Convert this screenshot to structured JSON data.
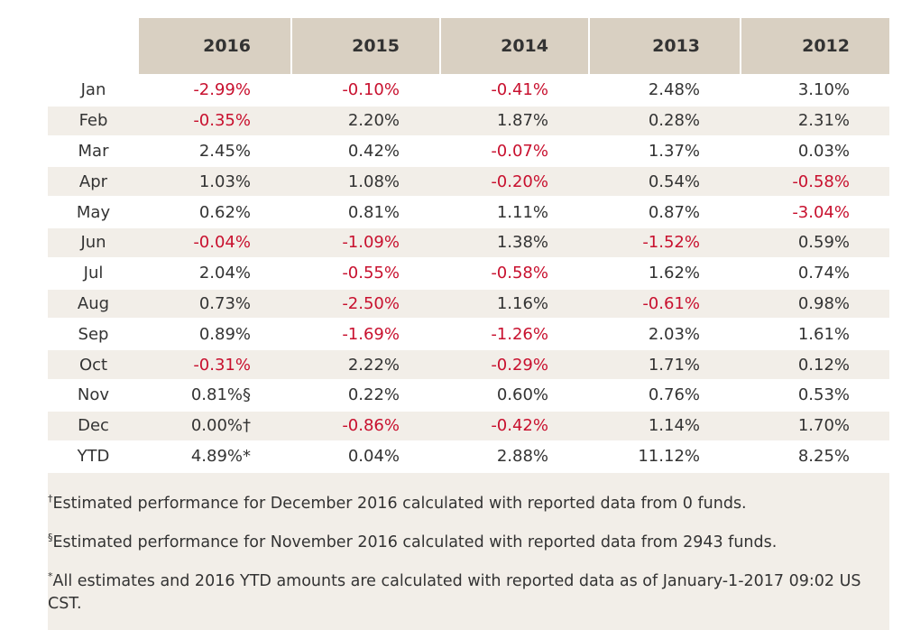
{
  "table": {
    "headers": [
      "2016",
      "2015",
      "2014",
      "2013",
      "2012"
    ],
    "rows": [
      {
        "month": "Jan",
        "values": [
          "-2.99%",
          "-0.10%",
          "-0.41%",
          "2.48%",
          "3.10%"
        ]
      },
      {
        "month": "Feb",
        "values": [
          "-0.35%",
          "2.20%",
          "1.87%",
          "0.28%",
          "2.31%"
        ]
      },
      {
        "month": "Mar",
        "values": [
          "2.45%",
          "0.42%",
          "-0.07%",
          "1.37%",
          "0.03%"
        ]
      },
      {
        "month": "Apr",
        "values": [
          "1.03%",
          "1.08%",
          "-0.20%",
          "0.54%",
          "-0.58%"
        ]
      },
      {
        "month": "May",
        "values": [
          "0.62%",
          "0.81%",
          "1.11%",
          "0.87%",
          "-3.04%"
        ]
      },
      {
        "month": "Jun",
        "values": [
          "-0.04%",
          "-1.09%",
          "1.38%",
          "-1.52%",
          "0.59%"
        ]
      },
      {
        "month": "Jul",
        "values": [
          "2.04%",
          "-0.55%",
          "-0.58%",
          "1.62%",
          "0.74%"
        ]
      },
      {
        "month": "Aug",
        "values": [
          "0.73%",
          "-2.50%",
          "1.16%",
          "-0.61%",
          "0.98%"
        ]
      },
      {
        "month": "Sep",
        "values": [
          "0.89%",
          "-1.69%",
          "-1.26%",
          "2.03%",
          "1.61%"
        ]
      },
      {
        "month": "Oct",
        "values": [
          "-0.31%",
          "2.22%",
          "-0.29%",
          "1.71%",
          "0.12%"
        ]
      },
      {
        "month": "Nov",
        "values": [
          "0.81%§",
          "0.22%",
          "0.60%",
          "0.76%",
          "0.53%"
        ]
      },
      {
        "month": "Dec",
        "values": [
          "0.00%†",
          "-0.86%",
          "-0.42%",
          "1.14%",
          "1.70%"
        ]
      },
      {
        "month": "YTD",
        "values": [
          "4.89%*",
          "0.04%",
          "2.88%",
          "11.12%",
          "8.25%"
        ]
      }
    ]
  },
  "notes": [
    {
      "mark": "†",
      "text": "Estimated performance for December 2016 calculated with reported data from 0 funds."
    },
    {
      "mark": "§",
      "text": "Estimated performance for November 2016 calculated with reported data from 2943 funds."
    },
    {
      "mark": "*",
      "text": "All estimates and 2016 YTD amounts are calculated with reported data as of January-1-2017 09:02 US CST."
    }
  ],
  "colors": {
    "negative": "#c8102e",
    "header_bg": "#d9d0c2",
    "stripe_bg": "#f2eee8"
  }
}
